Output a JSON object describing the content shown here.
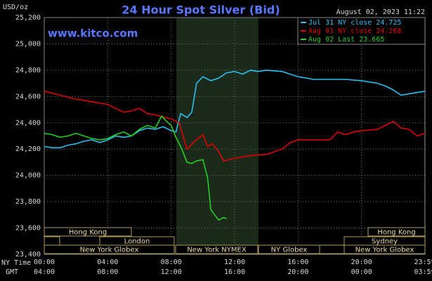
{
  "chart_data": {
    "type": "line",
    "title": "24 Hour Spot Silver (Bid)",
    "y_label": "USD/oz",
    "watermark": "www.kitco.com",
    "timestamp": "August 02, 2023 11:22",
    "x_row_label": "NY Time",
    "x2_row_label": "GMT",
    "xlim": [
      0,
      24
    ],
    "xticks": [
      {
        "value": 0,
        "label": "00:00"
      },
      {
        "value": 4,
        "label": "04:00"
      },
      {
        "value": 8,
        "label": "08:00"
      },
      {
        "value": 12,
        "label": "12:00"
      },
      {
        "value": 16,
        "label": "16:00"
      },
      {
        "value": 20,
        "label": "20:00"
      },
      {
        "value": 23.98,
        "label": "23:59"
      }
    ],
    "x2_tick_labels": [
      "04:00",
      "08:00",
      "12:00",
      "16:00",
      "20:00",
      "00:00",
      "03:59"
    ],
    "ylim": [
      23.4,
      25.2
    ],
    "yticks": [
      {
        "value": 23.4,
        "label": "23,400"
      },
      {
        "value": 23.6,
        "label": "23,600"
      },
      {
        "value": 23.8,
        "label": "23,800"
      },
      {
        "value": 24.0,
        "label": "24,000"
      },
      {
        "value": 24.2,
        "label": "24,200"
      },
      {
        "value": 24.4,
        "label": "24,400"
      },
      {
        "value": 24.6,
        "label": "24,600"
      },
      {
        "value": 24.8,
        "label": "24,800"
      },
      {
        "value": 25.0,
        "label": "25,000"
      },
      {
        "value": 25.2,
        "label": "25,200"
      }
    ],
    "grid": true,
    "legend": "top-right",
    "shaded_session": [
      8.33,
      13.5
    ],
    "sessions": [
      "Hong Kong",
      "London",
      "New York Globex",
      "New York NYMEX",
      "NY Globex",
      "Hong Kong",
      "Sydney",
      "New York Globex"
    ],
    "series": [
      {
        "name": "Jul 31 NY close 24.725",
        "color": "#28c0f0",
        "x": [
          0,
          0.5,
          1,
          1.5,
          2,
          2.5,
          3,
          3.5,
          4,
          4.5,
          5,
          5.5,
          6,
          6.5,
          7,
          7.5,
          8,
          8.3,
          8.6,
          9,
          9.3,
          9.6,
          10,
          10.5,
          11,
          11.5,
          12,
          12.5,
          13,
          13.5,
          14,
          15,
          16,
          17,
          18,
          19,
          20,
          20.5,
          21,
          21.5,
          22,
          22.5,
          23,
          23.5,
          24
        ],
        "values": [
          24.22,
          24.21,
          24.21,
          24.23,
          24.24,
          24.26,
          24.27,
          24.25,
          24.27,
          24.3,
          24.29,
          24.3,
          24.34,
          24.36,
          24.35,
          24.37,
          24.34,
          24.33,
          24.47,
          24.44,
          24.48,
          24.7,
          24.75,
          24.72,
          24.74,
          24.78,
          24.79,
          24.77,
          24.8,
          24.79,
          24.8,
          24.79,
          24.75,
          24.73,
          24.73,
          24.73,
          24.72,
          24.71,
          24.7,
          24.68,
          24.65,
          24.61,
          24.62,
          24.63,
          24.64
        ]
      },
      {
        "name": "Aug 01 NY close 24.268",
        "color": "#e00000",
        "x": [
          0,
          1,
          2,
          3,
          4,
          5,
          5.5,
          6,
          6.5,
          7,
          8,
          8.5,
          9,
          9.5,
          10,
          10.3,
          10.6,
          11,
          11.3,
          12,
          13,
          14,
          15,
          15.5,
          16,
          17,
          18,
          18.5,
          19,
          19.5,
          20,
          21,
          21.5,
          22,
          22.5,
          23,
          23.5,
          24
        ],
        "values": [
          24.64,
          24.61,
          24.58,
          24.56,
          24.54,
          24.48,
          24.49,
          24.51,
          24.47,
          24.46,
          24.43,
          24.4,
          24.2,
          24.26,
          24.31,
          24.22,
          24.24,
          24.18,
          24.11,
          24.13,
          24.15,
          24.16,
          24.2,
          24.25,
          24.27,
          24.27,
          24.27,
          24.33,
          24.31,
          24.33,
          24.34,
          24.35,
          24.38,
          24.41,
          24.36,
          24.35,
          24.3,
          24.32
        ]
      },
      {
        "name": "Aug 02 Last 23.665",
        "color": "#22d022",
        "x": [
          0,
          0.5,
          1,
          1.5,
          2,
          2.5,
          3,
          3.5,
          4,
          4.5,
          5,
          5.5,
          6,
          6.5,
          7,
          7.4,
          7.8,
          8,
          8.3,
          8.6,
          9,
          9.3,
          9.6,
          10,
          10.3,
          10.5,
          10.8,
          11,
          11.3,
          11.5
        ],
        "values": [
          24.32,
          24.31,
          24.29,
          24.3,
          24.32,
          24.3,
          24.28,
          24.27,
          24.28,
          24.31,
          24.33,
          24.3,
          24.35,
          24.38,
          24.36,
          24.45,
          24.4,
          24.38,
          24.29,
          24.22,
          24.1,
          24.09,
          24.11,
          24.12,
          23.98,
          23.74,
          23.69,
          23.66,
          23.68,
          23.67
        ]
      }
    ]
  }
}
